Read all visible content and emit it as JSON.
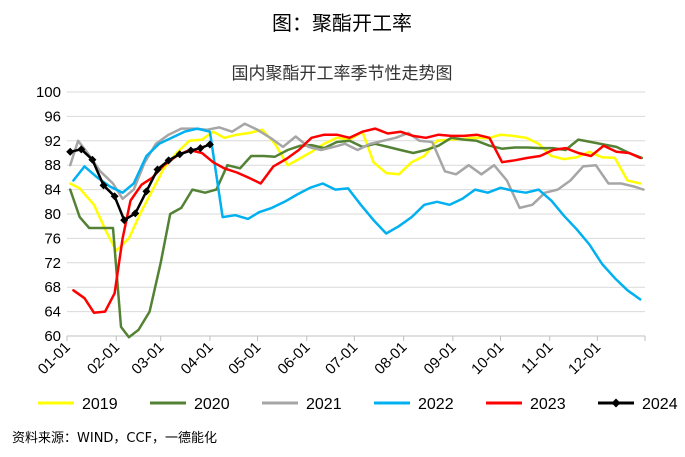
{
  "figure_title": "图：聚酯开工率",
  "source": "资料来源：WIND，CCF，一德能化",
  "chart_data": {
    "type": "line",
    "title": "国内聚酯开工率季节性走势图",
    "xlabel": "",
    "ylabel": "",
    "ylim": [
      60,
      100
    ],
    "yticks": [
      60,
      64,
      68,
      72,
      76,
      80,
      84,
      88,
      92,
      96,
      100
    ],
    "xlim": [
      1,
      365
    ],
    "xticks": [
      {
        "label": "01-01",
        "day": 1
      },
      {
        "label": "02-01",
        "day": 32
      },
      {
        "label": "03-01",
        "day": 60
      },
      {
        "label": "04-01",
        "day": 91
      },
      {
        "label": "05-01",
        "day": 121
      },
      {
        "label": "06-01",
        "day": 152
      },
      {
        "label": "07-01",
        "day": 182
      },
      {
        "label": "08-01",
        "day": 213
      },
      {
        "label": "09-01",
        "day": 244
      },
      {
        "label": "10-01",
        "day": 274
      },
      {
        "label": "11-01",
        "day": 305
      },
      {
        "label": "12-01",
        "day": 335
      }
    ],
    "grid": "horizontal",
    "legend_position": "bottom",
    "series": [
      {
        "name": "2019",
        "color": "#ffff00",
        "marker": "none",
        "x": [
          3,
          9,
          18,
          25,
          32,
          40,
          47,
          55,
          62,
          70,
          78,
          86,
          93,
          100,
          108,
          116,
          124,
          132,
          140,
          147,
          155,
          163,
          171,
          179,
          187,
          194,
          202,
          210,
          218,
          226,
          234,
          242,
          250,
          258,
          266,
          274,
          282,
          290,
          298,
          306,
          314,
          322,
          330,
          338,
          346,
          354,
          362
        ],
        "y": [
          85,
          84.2,
          81.5,
          77.5,
          74,
          76,
          80,
          84,
          87.5,
          90,
          92,
          92.2,
          93.5,
          92.5,
          93,
          93.3,
          93.8,
          91.5,
          88,
          89,
          90.2,
          91.5,
          92.5,
          92.2,
          93.5,
          88.5,
          86.7,
          86.5,
          88.5,
          89.5,
          92,
          92.2,
          92.3,
          92.5,
          92.4,
          93,
          92.8,
          92.5,
          91.5,
          89.5,
          89,
          89.3,
          90.2,
          89.3,
          89.2,
          85.5,
          85
        ]
      },
      {
        "name": "2020",
        "color": "#548235",
        "marker": "none",
        "x": [
          3,
          9,
          15,
          22,
          30,
          35,
          40,
          46,
          53,
          60,
          66,
          73,
          80,
          88,
          95,
          102,
          110,
          117,
          125,
          132,
          140,
          148,
          155,
          163,
          171,
          179,
          187,
          195,
          203,
          211,
          219,
          227,
          235,
          243,
          251,
          259,
          267,
          275,
          283,
          291,
          299,
          307,
          315,
          323,
          331,
          339,
          347,
          355,
          363
        ],
        "y": [
          84,
          79.5,
          77.7,
          77.7,
          77.7,
          61.5,
          59.8,
          61,
          64,
          72,
          80,
          81,
          84,
          83.5,
          84,
          88,
          87.5,
          89.5,
          89.5,
          89.4,
          90.5,
          91.2,
          91.3,
          90.8,
          91.8,
          92,
          91,
          91.5,
          91,
          90.5,
          90,
          90.5,
          91.2,
          92.5,
          92.2,
          92,
          91.2,
          90.7,
          90.9,
          90.9,
          90.8,
          90.8,
          90.5,
          92.2,
          91.8,
          91.4,
          91,
          90,
          89.2
        ]
      },
      {
        "name": "2021",
        "color": "#a6a6a6",
        "marker": "none",
        "x": [
          3,
          8,
          14,
          22,
          30,
          36,
          43,
          50,
          57,
          65,
          73,
          81,
          89,
          97,
          105,
          113,
          121,
          129,
          137,
          145,
          153,
          161,
          169,
          176,
          184,
          192,
          200,
          208,
          216,
          223,
          231,
          239,
          246,
          254,
          262,
          270,
          278,
          286,
          294,
          302,
          310,
          318,
          326,
          334,
          342,
          350,
          358,
          364
        ],
        "y": [
          88,
          92,
          90,
          87,
          85,
          82.5,
          84,
          88.5,
          91.5,
          93,
          94,
          94,
          93.8,
          94.2,
          93.5,
          94.8,
          93.8,
          92.5,
          91,
          92.7,
          91,
          90.5,
          91,
          91.5,
          90.5,
          91.5,
          92,
          92.5,
          93.3,
          92,
          91.8,
          87,
          86.5,
          88,
          86.5,
          88,
          85.5,
          81,
          81.5,
          83.5,
          84,
          85.5,
          87.8,
          88,
          85,
          85,
          84.5,
          84
        ]
      },
      {
        "name": "2022",
        "color": "#00b0f0",
        "marker": "none",
        "x": [
          5,
          12,
          20,
          28,
          36,
          43,
          51,
          59,
          67,
          75,
          83,
          91,
          99,
          107,
          115,
          122,
          130,
          138,
          146,
          154,
          162,
          170,
          178,
          186,
          194,
          202,
          210,
          218,
          226,
          234,
          242,
          250,
          258,
          266,
          274,
          282,
          290,
          298,
          306,
          314,
          322,
          330,
          338,
          346,
          354,
          362
        ],
        "y": [
          85.5,
          87.8,
          86,
          84.5,
          83.5,
          85,
          89.5,
          91.5,
          92.5,
          93.5,
          94,
          93.5,
          79.5,
          79.8,
          79.2,
          80.3,
          81,
          82,
          83.2,
          84.3,
          85,
          84,
          84.2,
          81.5,
          79,
          76.8,
          78,
          79.5,
          81.5,
          82,
          81.5,
          82.5,
          84,
          83.5,
          84.3,
          83.8,
          83.5,
          84,
          82.2,
          79.7,
          77.5,
          75,
          71.8,
          69.5,
          67.5,
          66
        ]
      },
      {
        "name": "2023",
        "color": "#ff0000",
        "marker": "none",
        "x": [
          5,
          12,
          18,
          25,
          31,
          36,
          41,
          48,
          55,
          62,
          70,
          78,
          86,
          93,
          100,
          108,
          115,
          123,
          131,
          139,
          147,
          155,
          163,
          171,
          179,
          187,
          195,
          203,
          211,
          219,
          227,
          235,
          243,
          251,
          259,
          267,
          275,
          283,
          291,
          299,
          307,
          315,
          323,
          331,
          339,
          347,
          355,
          362
        ],
        "y": [
          67.5,
          66.2,
          63.8,
          64,
          67,
          76,
          82.2,
          84.8,
          86,
          88,
          89.5,
          90.5,
          90,
          88.5,
          87.5,
          86.8,
          86,
          85,
          87.8,
          89,
          90.5,
          92.5,
          93,
          93,
          92.5,
          93.5,
          94,
          93.2,
          93.5,
          92.8,
          92.5,
          93,
          92.8,
          92.8,
          93,
          92.5,
          88.5,
          88.8,
          89.2,
          89.5,
          90.5,
          90.8,
          90,
          89.5,
          91.2,
          90.2,
          90,
          89.2
        ]
      },
      {
        "name": "2024",
        "color": "#000000",
        "marker": "diamond",
        "x": [
          3,
          10,
          17,
          24,
          31,
          37,
          44,
          51,
          58,
          65,
          72,
          79,
          85,
          91
        ],
        "y": [
          90.2,
          90.6,
          88.9,
          84.7,
          82.9,
          79,
          80.1,
          83.7,
          87.3,
          88.8,
          89.8,
          90.4,
          90.8,
          91.4
        ]
      }
    ]
  }
}
